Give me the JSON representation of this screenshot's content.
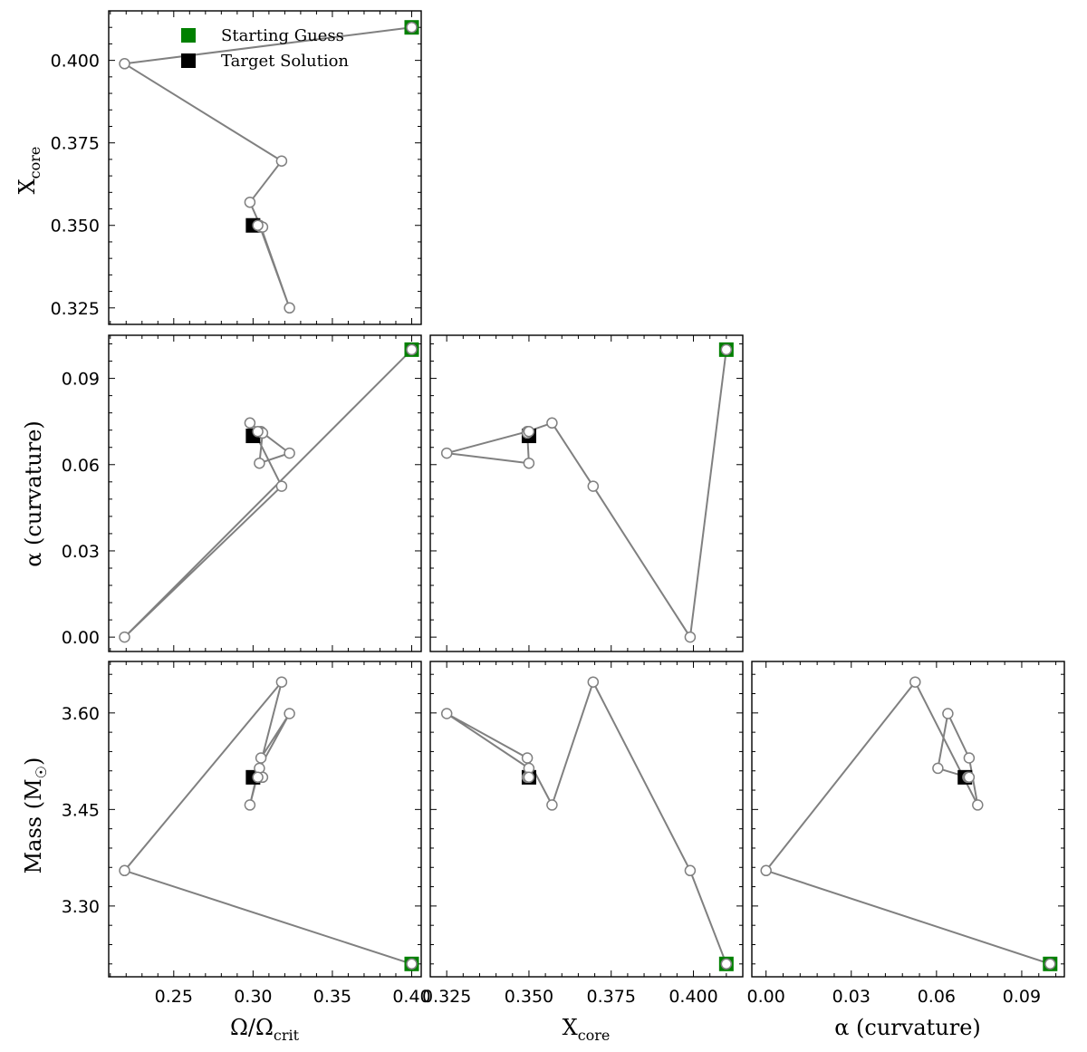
{
  "colors": {
    "start": "#008000",
    "target": "#000000",
    "path": "#808080",
    "marker_fill": "#ffffff"
  },
  "legend": {
    "start_label": "Starting Guess",
    "target_label": "Target Solution"
  },
  "chart_data": {
    "type": "scatter",
    "kind": "corner-plot",
    "grid": false,
    "legend_placement": "top-center of top-left panel",
    "parameters": [
      {
        "key": "omega",
        "label": "Ω/Ωcrit",
        "label_main": "Ω/Ω",
        "label_sub": "crit",
        "lim": [
          0.209,
          0.406
        ],
        "ticks": [
          0.25,
          0.3,
          0.35,
          0.4
        ],
        "ticklabels": [
          "0.25",
          "0.30",
          "0.35",
          "0.40"
        ]
      },
      {
        "key": "xcore",
        "label": "Xcore",
        "label_main": "X",
        "label_sub": "core",
        "lim": [
          0.32,
          0.415
        ],
        "ticks": [
          0.325,
          0.35,
          0.375,
          0.4
        ],
        "ticklabels": [
          "0.325",
          "0.350",
          "0.375",
          "0.400"
        ]
      },
      {
        "key": "alpha",
        "label": "α (curvature)",
        "label_main": "α (curvature)",
        "label_sub": "",
        "lim": [
          -0.005,
          0.105
        ],
        "ticks": [
          0.0,
          0.03,
          0.06,
          0.09
        ],
        "ticklabels": [
          "0.00",
          "0.03",
          "0.06",
          "0.09"
        ]
      },
      {
        "key": "mass",
        "label": "Mass (M☉)",
        "label_main": "Mass (M",
        "label_sub": "☉",
        "label_close": ")",
        "lim": [
          3.19,
          3.68
        ],
        "ticks": [
          3.3,
          3.45,
          3.6
        ],
        "ticklabels": [
          "3.30",
          "3.45",
          "3.60"
        ]
      }
    ],
    "panels": [
      {
        "x": "omega",
        "y": "xcore"
      },
      {
        "x": "omega",
        "y": "alpha"
      },
      {
        "x": "xcore",
        "y": "alpha"
      },
      {
        "x": "omega",
        "y": "mass"
      },
      {
        "x": "xcore",
        "y": "mass"
      },
      {
        "x": "alpha",
        "y": "mass"
      }
    ],
    "iterations": [
      {
        "omega": 0.4,
        "xcore": 0.41,
        "alpha": 0.1,
        "mass": 3.21
      },
      {
        "omega": 0.219,
        "xcore": 0.399,
        "alpha": 0.0,
        "mass": 3.355
      },
      {
        "omega": 0.318,
        "xcore": 0.3695,
        "alpha": 0.0525,
        "mass": 3.648
      },
      {
        "omega": 0.298,
        "xcore": 0.357,
        "alpha": 0.0745,
        "mass": 3.457
      },
      {
        "omega": 0.305,
        "xcore": 0.3495,
        "alpha": 0.0715,
        "mass": 3.53
      },
      {
        "omega": 0.323,
        "xcore": 0.325,
        "alpha": 0.064,
        "mass": 3.599
      },
      {
        "omega": 0.304,
        "xcore": 0.35,
        "alpha": 0.0605,
        "mass": 3.514
      },
      {
        "omega": 0.306,
        "xcore": 0.3495,
        "alpha": 0.071,
        "mass": 3.5
      },
      {
        "omega": 0.303,
        "xcore": 0.35,
        "alpha": 0.0715,
        "mass": 3.5
      }
    ],
    "starting_guess": {
      "omega": 0.4,
      "xcore": 0.41,
      "alpha": 0.1,
      "mass": 3.21
    },
    "target_solution": {
      "omega": 0.3,
      "xcore": 0.35,
      "alpha": 0.07,
      "mass": 3.5
    }
  }
}
